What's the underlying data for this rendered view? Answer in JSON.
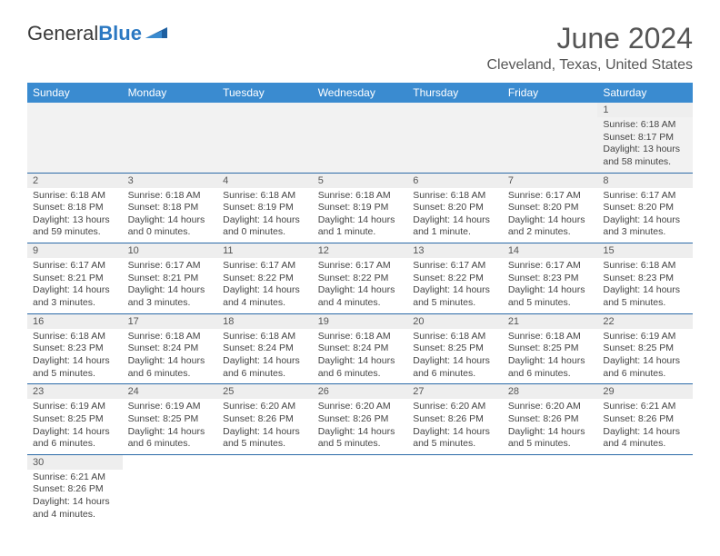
{
  "logo": {
    "word1": "General",
    "word2": "Blue"
  },
  "title": "June 2024",
  "subtitle": "Cleveland, Texas, United States",
  "colors": {
    "header_bg": "#3a8bd0",
    "header_fg": "#ffffff",
    "rule": "#2b6aa8",
    "daynum_bg": "#eeeeee"
  },
  "daynames": [
    "Sunday",
    "Monday",
    "Tuesday",
    "Wednesday",
    "Thursday",
    "Friday",
    "Saturday"
  ],
  "weeks": [
    [
      null,
      null,
      null,
      null,
      null,
      null,
      {
        "n": "1",
        "sr": "Sunrise: 6:18 AM",
        "ss": "Sunset: 8:17 PM",
        "d1": "Daylight: 13 hours",
        "d2": "and 58 minutes."
      }
    ],
    [
      {
        "n": "2",
        "sr": "Sunrise: 6:18 AM",
        "ss": "Sunset: 8:18 PM",
        "d1": "Daylight: 13 hours",
        "d2": "and 59 minutes."
      },
      {
        "n": "3",
        "sr": "Sunrise: 6:18 AM",
        "ss": "Sunset: 8:18 PM",
        "d1": "Daylight: 14 hours",
        "d2": "and 0 minutes."
      },
      {
        "n": "4",
        "sr": "Sunrise: 6:18 AM",
        "ss": "Sunset: 8:19 PM",
        "d1": "Daylight: 14 hours",
        "d2": "and 0 minutes."
      },
      {
        "n": "5",
        "sr": "Sunrise: 6:18 AM",
        "ss": "Sunset: 8:19 PM",
        "d1": "Daylight: 14 hours",
        "d2": "and 1 minute."
      },
      {
        "n": "6",
        "sr": "Sunrise: 6:18 AM",
        "ss": "Sunset: 8:20 PM",
        "d1": "Daylight: 14 hours",
        "d2": "and 1 minute."
      },
      {
        "n": "7",
        "sr": "Sunrise: 6:17 AM",
        "ss": "Sunset: 8:20 PM",
        "d1": "Daylight: 14 hours",
        "d2": "and 2 minutes."
      },
      {
        "n": "8",
        "sr": "Sunrise: 6:17 AM",
        "ss": "Sunset: 8:20 PM",
        "d1": "Daylight: 14 hours",
        "d2": "and 3 minutes."
      }
    ],
    [
      {
        "n": "9",
        "sr": "Sunrise: 6:17 AM",
        "ss": "Sunset: 8:21 PM",
        "d1": "Daylight: 14 hours",
        "d2": "and 3 minutes."
      },
      {
        "n": "10",
        "sr": "Sunrise: 6:17 AM",
        "ss": "Sunset: 8:21 PM",
        "d1": "Daylight: 14 hours",
        "d2": "and 3 minutes."
      },
      {
        "n": "11",
        "sr": "Sunrise: 6:17 AM",
        "ss": "Sunset: 8:22 PM",
        "d1": "Daylight: 14 hours",
        "d2": "and 4 minutes."
      },
      {
        "n": "12",
        "sr": "Sunrise: 6:17 AM",
        "ss": "Sunset: 8:22 PM",
        "d1": "Daylight: 14 hours",
        "d2": "and 4 minutes."
      },
      {
        "n": "13",
        "sr": "Sunrise: 6:17 AM",
        "ss": "Sunset: 8:22 PM",
        "d1": "Daylight: 14 hours",
        "d2": "and 5 minutes."
      },
      {
        "n": "14",
        "sr": "Sunrise: 6:17 AM",
        "ss": "Sunset: 8:23 PM",
        "d1": "Daylight: 14 hours",
        "d2": "and 5 minutes."
      },
      {
        "n": "15",
        "sr": "Sunrise: 6:18 AM",
        "ss": "Sunset: 8:23 PM",
        "d1": "Daylight: 14 hours",
        "d2": "and 5 minutes."
      }
    ],
    [
      {
        "n": "16",
        "sr": "Sunrise: 6:18 AM",
        "ss": "Sunset: 8:23 PM",
        "d1": "Daylight: 14 hours",
        "d2": "and 5 minutes."
      },
      {
        "n": "17",
        "sr": "Sunrise: 6:18 AM",
        "ss": "Sunset: 8:24 PM",
        "d1": "Daylight: 14 hours",
        "d2": "and 6 minutes."
      },
      {
        "n": "18",
        "sr": "Sunrise: 6:18 AM",
        "ss": "Sunset: 8:24 PM",
        "d1": "Daylight: 14 hours",
        "d2": "and 6 minutes."
      },
      {
        "n": "19",
        "sr": "Sunrise: 6:18 AM",
        "ss": "Sunset: 8:24 PM",
        "d1": "Daylight: 14 hours",
        "d2": "and 6 minutes."
      },
      {
        "n": "20",
        "sr": "Sunrise: 6:18 AM",
        "ss": "Sunset: 8:25 PM",
        "d1": "Daylight: 14 hours",
        "d2": "and 6 minutes."
      },
      {
        "n": "21",
        "sr": "Sunrise: 6:18 AM",
        "ss": "Sunset: 8:25 PM",
        "d1": "Daylight: 14 hours",
        "d2": "and 6 minutes."
      },
      {
        "n": "22",
        "sr": "Sunrise: 6:19 AM",
        "ss": "Sunset: 8:25 PM",
        "d1": "Daylight: 14 hours",
        "d2": "and 6 minutes."
      }
    ],
    [
      {
        "n": "23",
        "sr": "Sunrise: 6:19 AM",
        "ss": "Sunset: 8:25 PM",
        "d1": "Daylight: 14 hours",
        "d2": "and 6 minutes."
      },
      {
        "n": "24",
        "sr": "Sunrise: 6:19 AM",
        "ss": "Sunset: 8:25 PM",
        "d1": "Daylight: 14 hours",
        "d2": "and 6 minutes."
      },
      {
        "n": "25",
        "sr": "Sunrise: 6:20 AM",
        "ss": "Sunset: 8:26 PM",
        "d1": "Daylight: 14 hours",
        "d2": "and 5 minutes."
      },
      {
        "n": "26",
        "sr": "Sunrise: 6:20 AM",
        "ss": "Sunset: 8:26 PM",
        "d1": "Daylight: 14 hours",
        "d2": "and 5 minutes."
      },
      {
        "n": "27",
        "sr": "Sunrise: 6:20 AM",
        "ss": "Sunset: 8:26 PM",
        "d1": "Daylight: 14 hours",
        "d2": "and 5 minutes."
      },
      {
        "n": "28",
        "sr": "Sunrise: 6:20 AM",
        "ss": "Sunset: 8:26 PM",
        "d1": "Daylight: 14 hours",
        "d2": "and 5 minutes."
      },
      {
        "n": "29",
        "sr": "Sunrise: 6:21 AM",
        "ss": "Sunset: 8:26 PM",
        "d1": "Daylight: 14 hours",
        "d2": "and 4 minutes."
      }
    ],
    [
      {
        "n": "30",
        "sr": "Sunrise: 6:21 AM",
        "ss": "Sunset: 8:26 PM",
        "d1": "Daylight: 14 hours",
        "d2": "and 4 minutes."
      },
      null,
      null,
      null,
      null,
      null,
      null
    ]
  ]
}
